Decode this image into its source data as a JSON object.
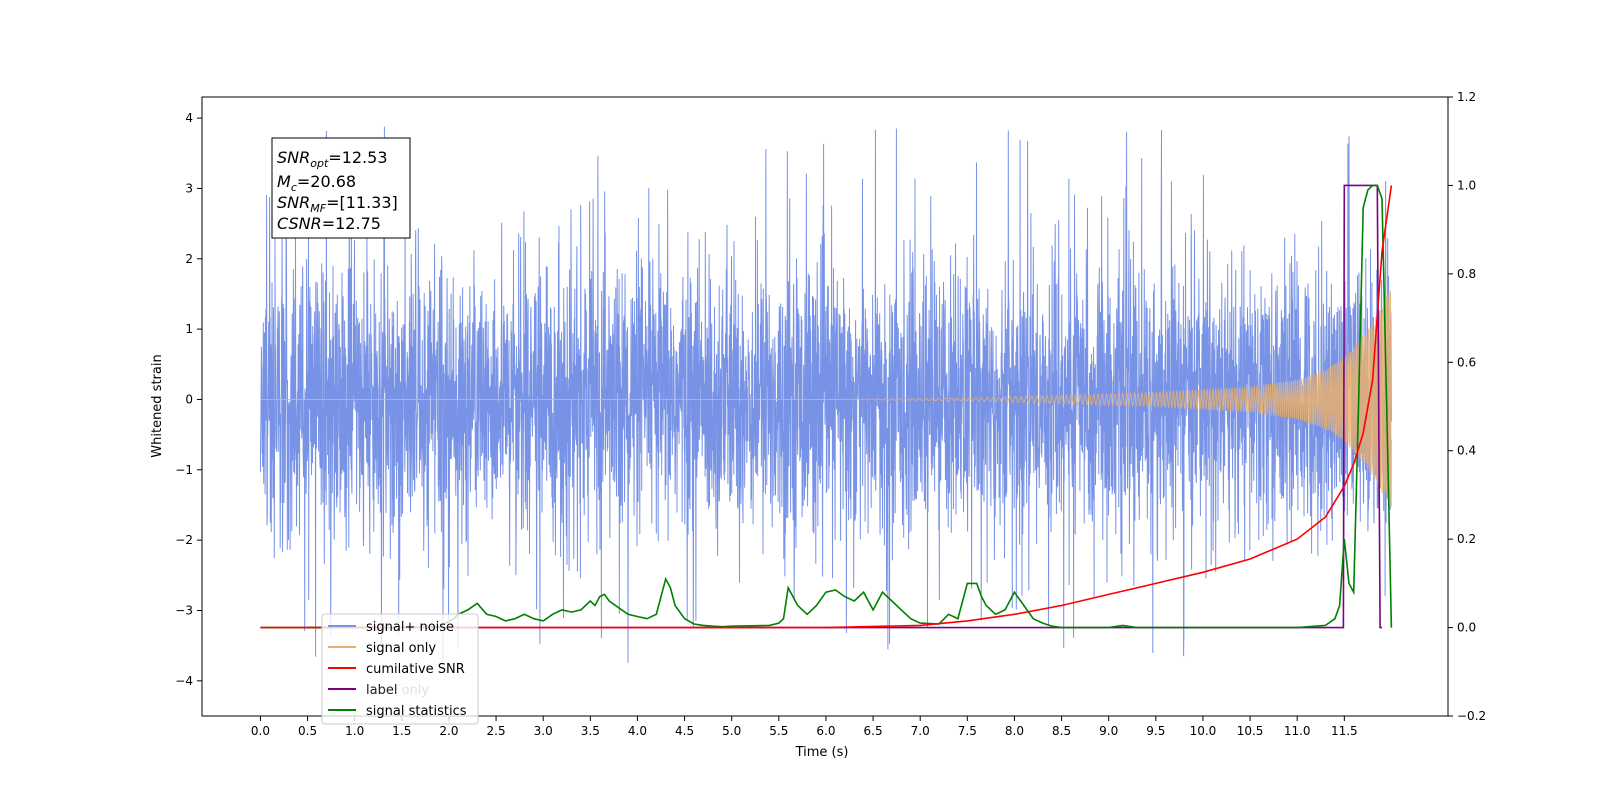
{
  "chart_data": {
    "type": "line",
    "xlabel": "Time (s)",
    "ylabel": "Whitened strain",
    "xlim": [
      -0.62,
      12.6
    ],
    "ylim": [
      -4.5,
      4.3
    ],
    "y2lim": [
      -0.2,
      1.2
    ],
    "x_ticks": [
      "0.0",
      "0.5",
      "1.0",
      "1.5",
      "2.0",
      "2.5",
      "3.0",
      "3.5",
      "4.0",
      "4.5",
      "5.0",
      "5.5",
      "6.0",
      "6.5",
      "7.0",
      "7.5",
      "8.0",
      "8.5",
      "9.0",
      "9.5",
      "10.0",
      "10.5",
      "11.0",
      "11.5"
    ],
    "y_ticks": [
      "−4",
      "−3",
      "−2",
      "−1",
      "0",
      "1",
      "2",
      "3",
      "4"
    ],
    "y2_ticks": [
      "−0.2",
      "0.0",
      "0.2",
      "0.4",
      "0.6",
      "0.8",
      "1.0",
      "1.2"
    ],
    "grid": false,
    "legend_position": "lower-left",
    "annotation": {
      "snr_opt": "=12.53",
      "mc": "=20.68",
      "snr_mf": "=[11.33]",
      "csnr": "=12.75"
    },
    "series": [
      {
        "name": "signal+ noise",
        "axis": "left",
        "color": "#7893e6",
        "description_points": [
          [
            0.0,
            0.0
          ],
          [
            12.0,
            0.0
          ]
        ],
        "noise_amplitude_typical": 1.5,
        "noise_peak": 3.9
      },
      {
        "name": "signal only",
        "axis": "left",
        "color": "#e8b070",
        "envelope": [
          [
            0.0,
            0.0
          ],
          [
            6.0,
            0.0
          ],
          [
            7.5,
            0.02
          ],
          [
            8.5,
            0.06
          ],
          [
            9.5,
            0.1
          ],
          [
            10.5,
            0.18
          ],
          [
            11.0,
            0.28
          ],
          [
            11.3,
            0.42
          ],
          [
            11.5,
            0.6
          ],
          [
            11.7,
            0.9
          ],
          [
            11.85,
            1.2
          ],
          [
            12.0,
            1.6
          ]
        ]
      },
      {
        "name": "cumilative SNR",
        "axis": "right",
        "color": "#ff0000",
        "x": [
          0.0,
          6.0,
          7.0,
          7.5,
          8.0,
          8.5,
          9.0,
          9.5,
          10.0,
          10.5,
          11.0,
          11.3,
          11.5,
          11.6,
          11.7,
          11.8,
          11.9,
          12.0
        ],
        "y": [
          0.0,
          0.0,
          0.005,
          0.015,
          0.03,
          0.05,
          0.075,
          0.1,
          0.125,
          0.155,
          0.2,
          0.25,
          0.32,
          0.37,
          0.44,
          0.56,
          0.85,
          1.0
        ]
      },
      {
        "name": "label",
        "axis": "right",
        "color": "#800080",
        "x": [
          0.5,
          11.49,
          11.5,
          11.85,
          11.88,
          11.9
        ],
        "y": [
          0.0,
          0.0,
          1.0,
          1.0,
          0.0,
          0.0
        ]
      },
      {
        "name": "label only",
        "axis": "right",
        "color": "#800080",
        "hidden": true
      },
      {
        "name": "signal statistics",
        "axis": "right",
        "color": "#008000",
        "x": [
          0.0,
          0.5,
          1.0,
          1.5,
          1.9,
          2.05,
          2.1,
          2.2,
          2.3,
          2.4,
          2.5,
          2.6,
          2.7,
          2.8,
          2.9,
          3.0,
          3.1,
          3.2,
          3.3,
          3.4,
          3.5,
          3.55,
          3.6,
          3.65,
          3.7,
          3.8,
          3.9,
          4.0,
          4.1,
          4.2,
          4.3,
          4.35,
          4.4,
          4.5,
          4.6,
          4.7,
          4.8,
          4.9,
          5.0,
          5.2,
          5.4,
          5.5,
          5.55,
          5.6,
          5.7,
          5.8,
          5.85,
          5.9,
          6.0,
          6.1,
          6.2,
          6.3,
          6.4,
          6.5,
          6.6,
          6.7,
          6.8,
          6.9,
          7.0,
          7.2,
          7.3,
          7.4,
          7.5,
          7.6,
          7.65,
          7.7,
          7.8,
          7.9,
          8.0,
          8.1,
          8.2,
          8.3,
          8.4,
          8.5,
          9.0,
          9.15,
          9.3,
          9.5,
          10.0,
          10.5,
          11.0,
          11.3,
          11.4,
          11.45,
          11.5,
          11.55,
          11.6,
          11.65,
          11.7,
          11.75,
          11.8,
          11.85,
          11.9,
          11.95,
          12.0
        ],
        "y": [
          0.0,
          0.0,
          0.0,
          0.0,
          0.002,
          0.02,
          0.03,
          0.04,
          0.055,
          0.03,
          0.025,
          0.015,
          0.02,
          0.03,
          0.02,
          0.015,
          0.03,
          0.04,
          0.035,
          0.04,
          0.06,
          0.05,
          0.07,
          0.075,
          0.06,
          0.045,
          0.03,
          0.025,
          0.02,
          0.03,
          0.11,
          0.09,
          0.05,
          0.02,
          0.008,
          0.005,
          0.003,
          0.002,
          0.003,
          0.004,
          0.005,
          0.01,
          0.02,
          0.09,
          0.05,
          0.03,
          0.04,
          0.05,
          0.08,
          0.085,
          0.07,
          0.06,
          0.08,
          0.04,
          0.08,
          0.06,
          0.04,
          0.02,
          0.01,
          0.008,
          0.03,
          0.02,
          0.1,
          0.1,
          0.07,
          0.05,
          0.03,
          0.04,
          0.08,
          0.05,
          0.02,
          0.01,
          0.003,
          0.0,
          0.0,
          0.005,
          0.0,
          0.0,
          0.0,
          0.0,
          0.0,
          0.005,
          0.02,
          0.05,
          0.2,
          0.1,
          0.08,
          0.5,
          0.95,
          0.99,
          1.0,
          1.0,
          0.97,
          0.5,
          0.0
        ]
      }
    ]
  }
}
